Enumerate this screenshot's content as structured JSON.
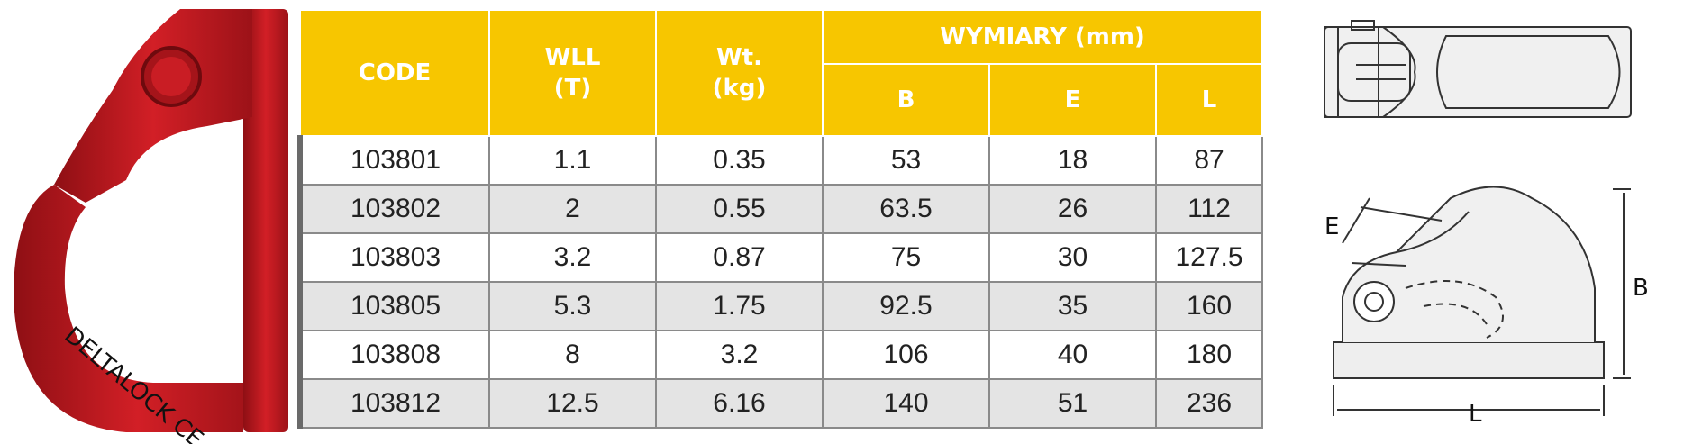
{
  "table": {
    "headers": {
      "code": "CODE",
      "wll_line1": "WLL",
      "wll_line2": "(T)",
      "wt_line1": "Wt.",
      "wt_line2": "(kg)",
      "dimensions": "WYMIARY (mm)",
      "b": "B",
      "e": "E",
      "l": "L"
    },
    "rows": [
      {
        "code": "103801",
        "wll": "1.1",
        "wt": "0.35",
        "b": "53",
        "e": "18",
        "l": "87"
      },
      {
        "code": "103802",
        "wll": "2",
        "wt": "0.55",
        "b": "63.5",
        "e": "26",
        "l": "112"
      },
      {
        "code": "103803",
        "wll": "3.2",
        "wt": "0.87",
        "b": "75",
        "e": "30",
        "l": "127.5"
      },
      {
        "code": "103805",
        "wll": "5.3",
        "wt": "1.75",
        "b": "92.5",
        "e": "35",
        "l": "160"
      },
      {
        "code": "103808",
        "wll": "8",
        "wt": "3.2",
        "b": "106",
        "e": "40",
        "l": "180"
      },
      {
        "code": "103812",
        "wll": "12.5",
        "wt": "6.16",
        "b": "140",
        "e": "51",
        "l": "236"
      }
    ]
  },
  "photo": {
    "engraving": "DELTALOCK CE",
    "color": "#c8161d"
  },
  "drawing": {
    "label_e": "E",
    "label_b": "B",
    "label_l": "L"
  },
  "colors": {
    "header": "#f7c600",
    "row_alt": "#e4e4e4"
  }
}
